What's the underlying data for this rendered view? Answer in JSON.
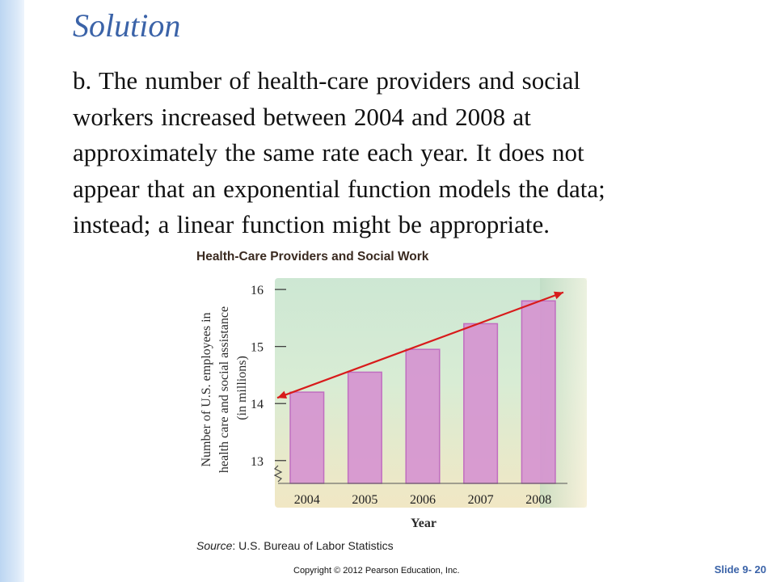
{
  "slide": {
    "title": "Solution",
    "body_lines": [
      "b.  The number of health-care providers and social",
      "workers increased between 2004 and 2008 at",
      "approximately the same rate each year. It does not",
      "appear that an exponential  function models the data;",
      "instead; a linear function might be appropriate."
    ],
    "copyright": "Copyright © 2012 Pearson Education, Inc.",
    "slide_number": "Slide 9- 20"
  },
  "source": {
    "label": "Source",
    "text": ": U.S. Bureau of Labor Statistics"
  },
  "chart_data": {
    "type": "bar",
    "title": "Health-Care Providers and Social Work",
    "xlabel": "Year",
    "ylabel_lines": [
      "Number of U.S. employees in",
      "health care and social assistance",
      "(in millions)"
    ],
    "categories": [
      "2004",
      "2005",
      "2006",
      "2007",
      "2008"
    ],
    "values": [
      14.2,
      14.55,
      14.95,
      15.4,
      15.8
    ],
    "ylim": [
      12.6,
      16.2
    ],
    "yticks": [
      13,
      14,
      15,
      16
    ],
    "axis_break": true,
    "trend_line": {
      "from": [
        2004,
        14.1
      ],
      "to": [
        2008,
        15.95
      ]
    },
    "colors": {
      "bar": "#d58fd0",
      "bar_edge": "#c06ec0",
      "trend": "#d81b1b",
      "background": "#cfe8d0"
    }
  }
}
